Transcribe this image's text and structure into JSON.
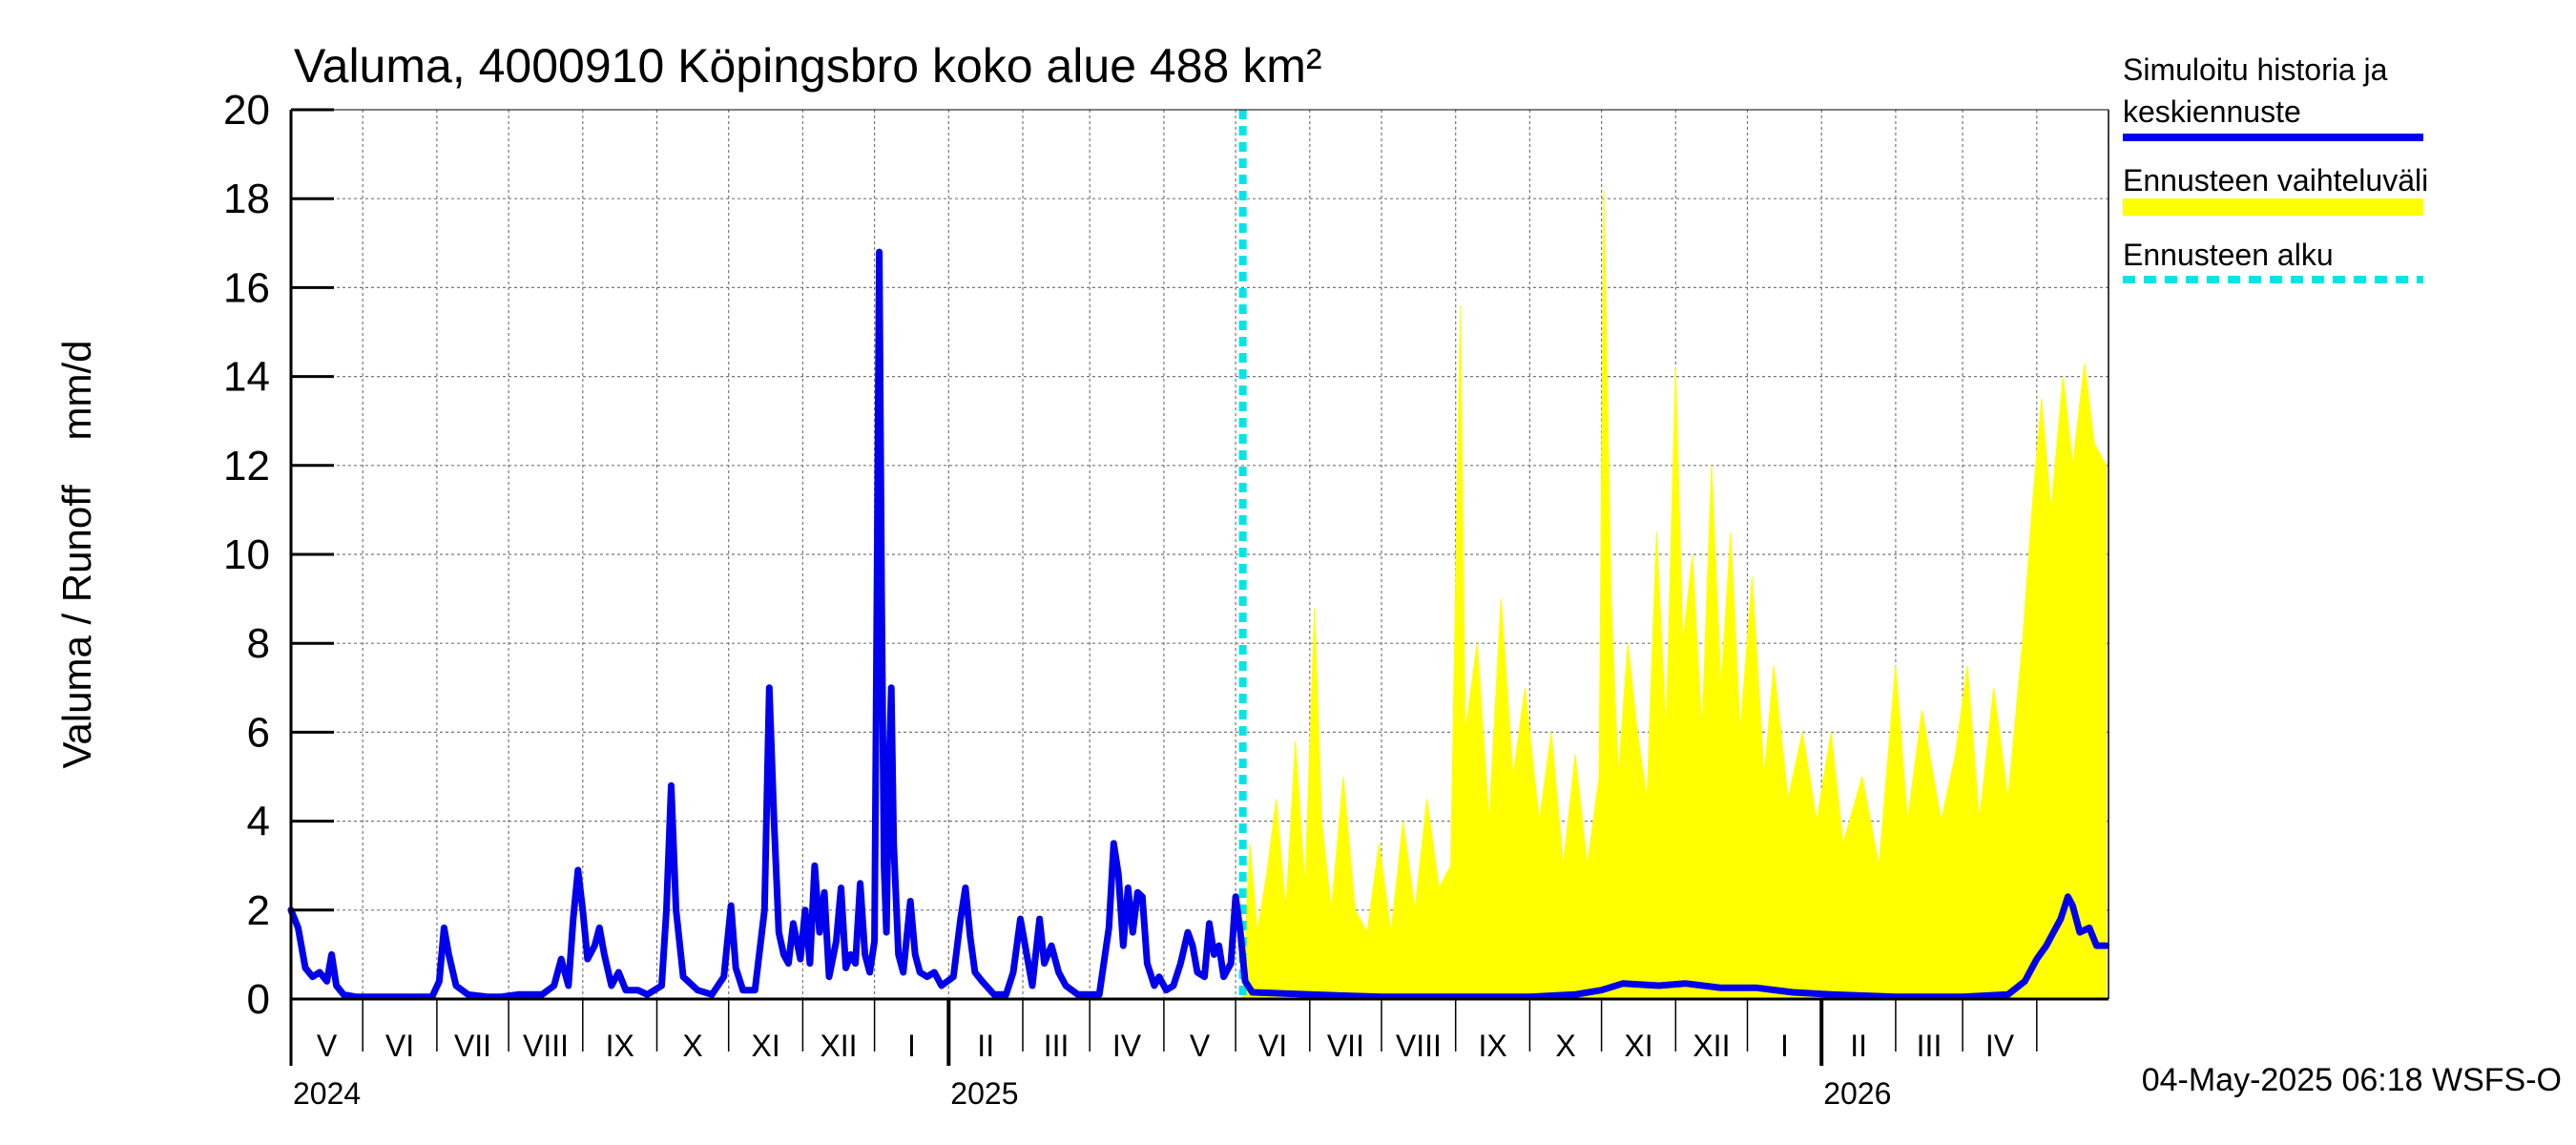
{
  "chart_data": {
    "type": "area",
    "title": "Valuma, 4000910 Köpingsbro koko alue 488 km²",
    "ylabel": "Valuma / Runoff    mm/d",
    "ylim": [
      0,
      20
    ],
    "yticks": [
      0,
      2,
      4,
      6,
      8,
      10,
      12,
      14,
      16,
      18,
      20
    ],
    "xlim": [
      "2024-04-01",
      "2026-04-30"
    ],
    "grid": true,
    "legend_position": "right",
    "month_labels": [
      "V",
      "VI",
      "VII",
      "VIII",
      "IX",
      "X",
      "XI",
      "XII",
      "I",
      "II",
      "III",
      "IV",
      "V",
      "VI",
      "VII",
      "VIII",
      "IX",
      "X",
      "XI",
      "XII",
      "I",
      "II",
      "III",
      "IV"
    ],
    "year_labels": [
      "2024",
      "2025",
      "2026"
    ],
    "forecast_start": "2025-05-04",
    "legend": [
      {
        "label": "Simuloitu historia ja keskiennuste",
        "lines": [
          "Simuloitu historia ja",
          "keskiennuste"
        ],
        "color": "#0000ee",
        "style": "solid"
      },
      {
        "label": "Ennusteen vaihteluväli",
        "lines": [
          "Ennusteen vaihteluväli"
        ],
        "color": "#ffff00",
        "style": "band"
      },
      {
        "label": "Ennusteen alku",
        "lines": [
          "Ennusteen alku"
        ],
        "color": "#00e5e5",
        "style": "dashed"
      }
    ],
    "series": [
      {
        "name": "Simuloitu historia ja keskiennuste",
        "color": "#0000ee",
        "points": [
          [
            "2024-04-01",
            2.0
          ],
          [
            "2024-04-04",
            1.6
          ],
          [
            "2024-04-07",
            0.7
          ],
          [
            "2024-04-10",
            0.5
          ],
          [
            "2024-04-13",
            0.6
          ],
          [
            "2024-04-16",
            0.4
          ],
          [
            "2024-04-18",
            1.0
          ],
          [
            "2024-04-20",
            0.3
          ],
          [
            "2024-04-23",
            0.1
          ],
          [
            "2024-04-28",
            0.05
          ],
          [
            "2024-05-10",
            0.05
          ],
          [
            "2024-05-20",
            0.05
          ],
          [
            "2024-05-30",
            0.05
          ],
          [
            "2024-06-02",
            0.4
          ],
          [
            "2024-06-04",
            1.6
          ],
          [
            "2024-06-06",
            1.0
          ],
          [
            "2024-06-09",
            0.3
          ],
          [
            "2024-06-14",
            0.1
          ],
          [
            "2024-06-22",
            0.05
          ],
          [
            "2024-06-28",
            0.05
          ],
          [
            "2024-07-05",
            0.1
          ],
          [
            "2024-07-15",
            0.1
          ],
          [
            "2024-07-20",
            0.3
          ],
          [
            "2024-07-23",
            0.9
          ],
          [
            "2024-07-26",
            0.3
          ],
          [
            "2024-07-28",
            1.8
          ],
          [
            "2024-07-30",
            2.9
          ],
          [
            "2024-08-01",
            2.0
          ],
          [
            "2024-08-03",
            0.9
          ],
          [
            "2024-08-06",
            1.2
          ],
          [
            "2024-08-08",
            1.6
          ],
          [
            "2024-08-10",
            1.0
          ],
          [
            "2024-08-13",
            0.3
          ],
          [
            "2024-08-16",
            0.6
          ],
          [
            "2024-08-19",
            0.2
          ],
          [
            "2024-08-24",
            0.2
          ],
          [
            "2024-08-28",
            0.1
          ],
          [
            "2024-09-03",
            0.3
          ],
          [
            "2024-09-05",
            2.0
          ],
          [
            "2024-09-07",
            4.8
          ],
          [
            "2024-09-09",
            2.0
          ],
          [
            "2024-09-12",
            0.5
          ],
          [
            "2024-09-18",
            0.2
          ],
          [
            "2024-09-24",
            0.1
          ],
          [
            "2024-09-29",
            0.5
          ],
          [
            "2024-10-02",
            2.1
          ],
          [
            "2024-10-04",
            0.7
          ],
          [
            "2024-10-07",
            0.2
          ],
          [
            "2024-10-12",
            0.2
          ],
          [
            "2024-10-16",
            2.0
          ],
          [
            "2024-10-18",
            7.0
          ],
          [
            "2024-10-20",
            4.0
          ],
          [
            "2024-10-22",
            1.5
          ],
          [
            "2024-10-24",
            1.0
          ],
          [
            "2024-10-26",
            0.8
          ],
          [
            "2024-10-28",
            1.7
          ],
          [
            "2024-10-31",
            0.9
          ],
          [
            "2024-11-02",
            2.0
          ],
          [
            "2024-11-04",
            0.8
          ],
          [
            "2024-11-06",
            3.0
          ],
          [
            "2024-11-08",
            1.5
          ],
          [
            "2024-11-10",
            2.4
          ],
          [
            "2024-11-12",
            0.5
          ],
          [
            "2024-11-15",
            1.3
          ],
          [
            "2024-11-17",
            2.5
          ],
          [
            "2024-11-19",
            0.7
          ],
          [
            "2024-11-21",
            1.0
          ],
          [
            "2024-11-23",
            0.8
          ],
          [
            "2024-11-25",
            2.6
          ],
          [
            "2024-11-27",
            1.0
          ],
          [
            "2024-11-29",
            0.6
          ],
          [
            "2024-12-01",
            1.3
          ],
          [
            "2024-12-02",
            9.0
          ],
          [
            "2024-12-03",
            16.8
          ],
          [
            "2024-12-04",
            9.0
          ],
          [
            "2024-12-05",
            3.0
          ],
          [
            "2024-12-06",
            1.5
          ],
          [
            "2024-12-07",
            5.0
          ],
          [
            "2024-12-08",
            7.0
          ],
          [
            "2024-12-09",
            3.5
          ],
          [
            "2024-12-11",
            1.0
          ],
          [
            "2024-12-13",
            0.6
          ],
          [
            "2024-12-16",
            2.2
          ],
          [
            "2024-12-18",
            1.0
          ],
          [
            "2024-12-20",
            0.6
          ],
          [
            "2024-12-23",
            0.5
          ],
          [
            "2024-12-26",
            0.6
          ],
          [
            "2024-12-29",
            0.3
          ],
          [
            "2025-01-03",
            0.5
          ],
          [
            "2025-01-06",
            1.8
          ],
          [
            "2025-01-08",
            2.5
          ],
          [
            "2025-01-10",
            1.4
          ],
          [
            "2025-01-12",
            0.6
          ],
          [
            "2025-01-15",
            0.4
          ],
          [
            "2025-01-20",
            0.1
          ],
          [
            "2025-01-25",
            0.1
          ],
          [
            "2025-01-28",
            0.6
          ],
          [
            "2025-01-31",
            1.8
          ],
          [
            "2025-02-02",
            1.2
          ],
          [
            "2025-02-05",
            0.3
          ],
          [
            "2025-02-08",
            1.8
          ],
          [
            "2025-02-10",
            0.8
          ],
          [
            "2025-02-13",
            1.2
          ],
          [
            "2025-02-16",
            0.6
          ],
          [
            "2025-02-19",
            0.3
          ],
          [
            "2025-02-24",
            0.1
          ],
          [
            "2025-03-05",
            0.1
          ],
          [
            "2025-03-09",
            1.6
          ],
          [
            "2025-03-11",
            3.5
          ],
          [
            "2025-03-13",
            2.8
          ],
          [
            "2025-03-15",
            1.2
          ],
          [
            "2025-03-17",
            2.5
          ],
          [
            "2025-03-19",
            1.5
          ],
          [
            "2025-03-21",
            2.4
          ],
          [
            "2025-03-23",
            2.3
          ],
          [
            "2025-03-25",
            0.8
          ],
          [
            "2025-03-28",
            0.3
          ],
          [
            "2025-03-30",
            0.5
          ],
          [
            "2025-04-02",
            0.2
          ],
          [
            "2025-04-05",
            0.3
          ],
          [
            "2025-04-08",
            0.8
          ],
          [
            "2025-04-11",
            1.5
          ],
          [
            "2025-04-13",
            1.2
          ],
          [
            "2025-04-15",
            0.6
          ],
          [
            "2025-04-18",
            0.5
          ],
          [
            "2025-04-20",
            1.7
          ],
          [
            "2025-04-22",
            1.0
          ],
          [
            "2025-04-24",
            1.2
          ],
          [
            "2025-04-26",
            0.5
          ],
          [
            "2025-04-29",
            0.8
          ],
          [
            "2025-05-01",
            2.3
          ],
          [
            "2025-05-03",
            1.5
          ],
          [
            "2025-05-05",
            0.4
          ],
          [
            "2025-05-08",
            0.15
          ],
          [
            "2025-06-01",
            0.1
          ],
          [
            "2025-07-01",
            0.05
          ],
          [
            "2025-08-01",
            0.05
          ],
          [
            "2025-09-01",
            0.05
          ],
          [
            "2025-09-20",
            0.1
          ],
          [
            "2025-10-01",
            0.2
          ],
          [
            "2025-10-10",
            0.35
          ],
          [
            "2025-10-25",
            0.3
          ],
          [
            "2025-11-05",
            0.35
          ],
          [
            "2025-11-20",
            0.25
          ],
          [
            "2025-12-05",
            0.25
          ],
          [
            "2025-12-20",
            0.15
          ],
          [
            "2026-01-05",
            0.1
          ],
          [
            "2026-02-01",
            0.05
          ],
          [
            "2026-03-01",
            0.05
          ],
          [
            "2026-03-20",
            0.1
          ],
          [
            "2026-03-27",
            0.4
          ],
          [
            "2026-04-01",
            0.9
          ],
          [
            "2026-04-05",
            1.2
          ],
          [
            "2026-04-08",
            1.5
          ],
          [
            "2026-04-11",
            1.8
          ],
          [
            "2026-04-14",
            2.3
          ],
          [
            "2026-04-16",
            2.1
          ],
          [
            "2026-04-19",
            1.5
          ],
          [
            "2026-04-23",
            1.6
          ],
          [
            "2026-04-26",
            1.2
          ],
          [
            "2026-04-30",
            1.2
          ]
        ]
      },
      {
        "name": "Ennusteen vaihteluväli",
        "color": "#ffff00",
        "note": "upper envelope of forecast range",
        "points": [
          [
            "2025-05-04",
            0.1
          ],
          [
            "2025-05-07",
            3.5
          ],
          [
            "2025-05-10",
            1.5
          ],
          [
            "2025-05-14",
            2.8
          ],
          [
            "2025-05-18",
            4.5
          ],
          [
            "2025-05-22",
            2.0
          ],
          [
            "2025-05-26",
            5.8
          ],
          [
            "2025-05-30",
            2.5
          ],
          [
            "2025-06-03",
            8.8
          ],
          [
            "2025-06-06",
            4.0
          ],
          [
            "2025-06-10",
            2.0
          ],
          [
            "2025-06-15",
            5.0
          ],
          [
            "2025-06-20",
            2.0
          ],
          [
            "2025-06-25",
            1.5
          ],
          [
            "2025-06-30",
            3.5
          ],
          [
            "2025-07-05",
            1.5
          ],
          [
            "2025-07-10",
            4.0
          ],
          [
            "2025-07-15",
            2.0
          ],
          [
            "2025-07-20",
            4.5
          ],
          [
            "2025-07-25",
            2.5
          ],
          [
            "2025-07-30",
            3.0
          ],
          [
            "2025-08-03",
            15.6
          ],
          [
            "2025-08-05",
            6.0
          ],
          [
            "2025-08-10",
            8.0
          ],
          [
            "2025-08-15",
            4.0
          ],
          [
            "2025-08-20",
            9.0
          ],
          [
            "2025-08-25",
            5.0
          ],
          [
            "2025-08-30",
            7.0
          ],
          [
            "2025-09-05",
            4.0
          ],
          [
            "2025-09-10",
            6.0
          ],
          [
            "2025-09-15",
            3.0
          ],
          [
            "2025-09-20",
            5.5
          ],
          [
            "2025-09-25",
            3.0
          ],
          [
            "2025-09-30",
            5.0
          ],
          [
            "2025-10-02",
            18.2
          ],
          [
            "2025-10-05",
            9.0
          ],
          [
            "2025-10-08",
            5.0
          ],
          [
            "2025-10-12",
            8.0
          ],
          [
            "2025-10-16",
            6.0
          ],
          [
            "2025-10-20",
            4.5
          ],
          [
            "2025-10-24",
            10.5
          ],
          [
            "2025-10-28",
            6.0
          ],
          [
            "2025-11-01",
            14.2
          ],
          [
            "2025-11-04",
            8.0
          ],
          [
            "2025-11-08",
            10.0
          ],
          [
            "2025-11-12",
            6.0
          ],
          [
            "2025-11-16",
            12.0
          ],
          [
            "2025-11-20",
            7.0
          ],
          [
            "2025-11-24",
            10.5
          ],
          [
            "2025-11-28",
            6.0
          ],
          [
            "2025-12-03",
            9.5
          ],
          [
            "2025-12-08",
            5.0
          ],
          [
            "2025-12-12",
            7.5
          ],
          [
            "2025-12-18",
            4.5
          ],
          [
            "2025-12-24",
            6.0
          ],
          [
            "2025-12-30",
            4.0
          ],
          [
            "2026-01-05",
            6.0
          ],
          [
            "2026-01-10",
            3.5
          ],
          [
            "2026-01-18",
            5.0
          ],
          [
            "2026-01-25",
            3.0
          ],
          [
            "2026-02-01",
            7.5
          ],
          [
            "2026-02-06",
            4.0
          ],
          [
            "2026-02-12",
            6.5
          ],
          [
            "2026-02-20",
            4.0
          ],
          [
            "2026-02-26",
            5.5
          ],
          [
            "2026-03-03",
            7.5
          ],
          [
            "2026-03-08",
            4.0
          ],
          [
            "2026-03-14",
            7.0
          ],
          [
            "2026-03-20",
            4.5
          ],
          [
            "2026-03-26",
            8.0
          ],
          [
            "2026-03-30",
            11.0
          ],
          [
            "2026-04-03",
            13.5
          ],
          [
            "2026-04-07",
            11.0
          ],
          [
            "2026-04-12",
            14.0
          ],
          [
            "2026-04-16",
            12.0
          ],
          [
            "2026-04-21",
            14.3
          ],
          [
            "2026-04-25",
            12.5
          ],
          [
            "2026-04-30",
            12.0
          ]
        ]
      }
    ]
  },
  "footer": {
    "timestamp": "04-May-2025 06:18 WSFS-O"
  }
}
